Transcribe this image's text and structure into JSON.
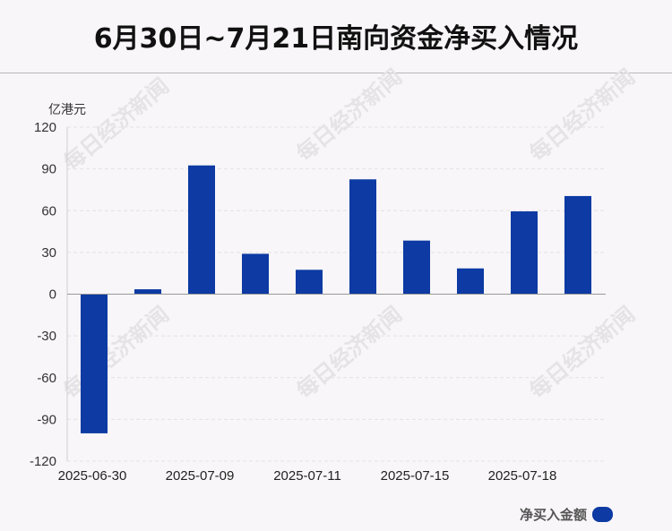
{
  "title": "6月30日~7月21日南向资金净买入情况",
  "watermark": "每日经济新闻",
  "colors": {
    "bar": "#0d3aa3",
    "grid": "#e4e1e4",
    "axis": "#999999"
  },
  "chart_data": {
    "type": "bar",
    "title": "6月30日~7月21日南向资金净买入情况",
    "ylabel": "亿港元",
    "ylim": [
      -120,
      120
    ],
    "yticks": [
      120,
      90,
      60,
      30,
      0,
      -30,
      -60,
      -90,
      -120
    ],
    "categories": [
      "2025-06-30",
      "",
      "2025-07-09",
      "",
      "2025-07-11",
      "",
      "2025-07-15",
      "",
      "2025-07-18",
      ""
    ],
    "xtick_labels": [
      "2025-06-30",
      "2025-07-09",
      "2025-07-11",
      "2025-07-15",
      "2025-07-18"
    ],
    "series": [
      {
        "name": "净买入金额",
        "values": [
          -100,
          3.5,
          92.5,
          29,
          17.5,
          82.5,
          38.5,
          18.5,
          59.5,
          70.5
        ]
      }
    ],
    "grid": true,
    "legend_position": "bottom-right"
  }
}
